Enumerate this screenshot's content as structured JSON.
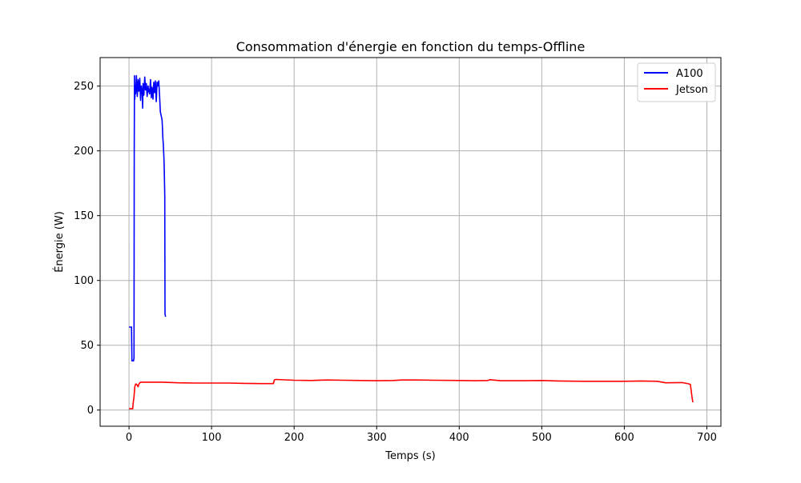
{
  "chart_data": {
    "type": "line",
    "title": "Consommation d'énergie en fonction du temps-Offline",
    "xlabel": "Temps (s)",
    "ylabel": "Énergie (W)",
    "xlim": [
      -35,
      717
    ],
    "ylim": [
      -12.5,
      272
    ],
    "xticks": [
      0,
      100,
      200,
      300,
      400,
      500,
      600,
      700
    ],
    "yticks": [
      0,
      50,
      100,
      150,
      200,
      250
    ],
    "grid": true,
    "legend_position": "top-right",
    "series": [
      {
        "name": "A100",
        "color": "#0000ff",
        "x": [
          0,
          1,
          2,
          3,
          3.5,
          4,
          4.5,
          5,
          5.5,
          6,
          6.3,
          6.6,
          7,
          7.5,
          8,
          9,
          10,
          11,
          12,
          13,
          14,
          15,
          16,
          16.5,
          17,
          18,
          19,
          20,
          21,
          22,
          23,
          24,
          25,
          26,
          27,
          28,
          29,
          30,
          31,
          32,
          33,
          34,
          35,
          36,
          37,
          38,
          39,
          40,
          40.5,
          41,
          41.5,
          42,
          42.5,
          43,
          43.3,
          43.6,
          44,
          44.3
        ],
        "y": [
          64,
          64,
          64,
          64,
          38,
          38,
          38,
          38,
          38,
          40,
          200,
          258,
          240,
          250,
          244,
          258,
          242,
          255,
          246,
          256,
          239,
          250,
          244,
          233,
          252,
          243,
          257,
          247,
          252,
          242,
          250,
          246,
          244,
          255,
          241,
          249,
          240,
          253,
          245,
          254,
          238,
          253,
          250,
          254,
          243,
          230,
          227,
          224,
          218,
          210,
          206,
          198,
          190,
          175,
          165,
          74,
          73,
          72
        ]
      },
      {
        "name": "Jetson",
        "color": "#ff0000",
        "x": [
          0,
          2,
          4,
          4.5,
          5,
          6,
          7,
          8,
          9,
          10,
          11,
          12,
          13,
          14,
          20,
          40,
          60,
          80,
          100,
          120,
          140,
          160,
          175,
          176,
          178,
          200,
          220,
          240,
          260,
          280,
          300,
          320,
          330,
          350,
          370,
          400,
          420,
          435,
          437,
          450,
          480,
          500,
          520,
          550,
          580,
          600,
          620,
          640,
          650,
          670,
          675,
          678,
          680,
          681,
          682,
          683
        ],
        "y": [
          1,
          1,
          1,
          1,
          5,
          10,
          18,
          20,
          20,
          19,
          18,
          20,
          21,
          21.5,
          21.5,
          21.5,
          21,
          20.8,
          20.8,
          20.8,
          20.6,
          20.4,
          20.4,
          23.3,
          23.6,
          23,
          22.8,
          23.2,
          23,
          22.8,
          22.6,
          22.8,
          23.2,
          23.2,
          23,
          22.8,
          22.6,
          22.8,
          23.4,
          22.6,
          22.6,
          22.8,
          22.4,
          22.2,
          22.2,
          22.2,
          22.4,
          22.2,
          21,
          21.2,
          20.6,
          20.2,
          19.8,
          15,
          10,
          6
        ]
      }
    ]
  }
}
